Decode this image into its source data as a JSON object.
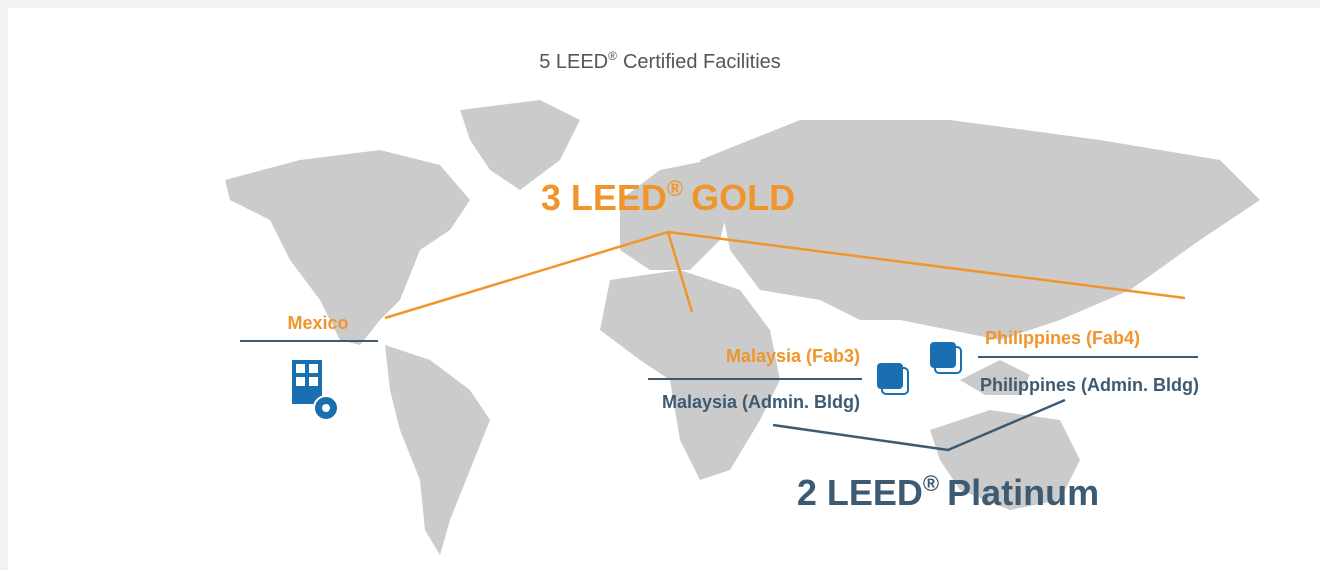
{
  "title": {
    "lead": "5 LEED",
    "mark": "®",
    "rest": "Certified Facilities"
  },
  "gold": {
    "lead": "3 LEED",
    "mark": "®",
    "rest": "GOLD"
  },
  "platinum": {
    "lead": "2 LEED",
    "mark": "®",
    "rest": "Platinum"
  },
  "sites": {
    "mexico": "Mexico",
    "malaysia_fab3": "Malaysia (Fab3)",
    "malaysia_admin": "Malaysia (Admin. Bldg)",
    "philippines_fab4": "Philippines (Fab4)",
    "philippines_admin": "Philippines (Admin. Bldg)"
  }
}
